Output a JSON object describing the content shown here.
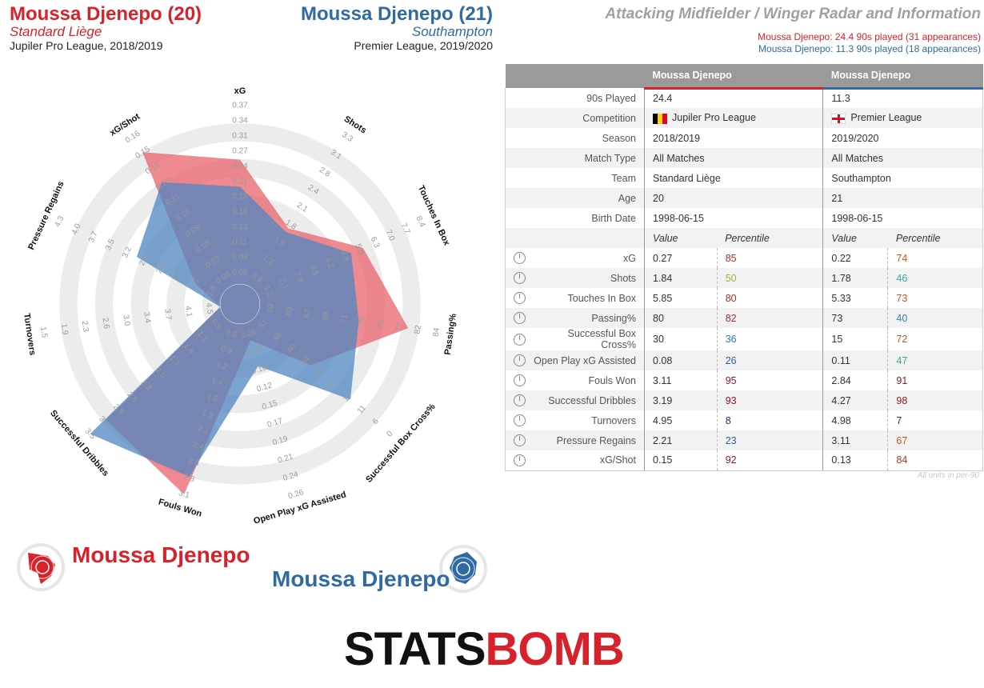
{
  "player1": {
    "name": "Moussa Djenepo (20)",
    "team": "Standard Liège",
    "comp": "Jupiler Pro League, 2018/2019",
    "color": "#d7222b"
  },
  "player2": {
    "name": "Moussa Djenepo (21)",
    "team": "Southampton",
    "comp": "Premier League, 2019/2020",
    "color": "#2f6aa3"
  },
  "radar_title": "Attacking Midfielder / Winger Radar and Information",
  "info1": "Moussa Djenepo: 24.4 90s played (31 appearances)",
  "info2": "Moussa Djenepo: 11.3 90s played (18 appearances)",
  "legend": {
    "p1": "Moussa Djenepo",
    "p2": "Moussa Djenepo"
  },
  "logo": {
    "part1": "STATS",
    "part2": "BOMB"
  },
  "units_note": "All units in per-90",
  "table": {
    "header": [
      "",
      "Moussa Djenepo",
      "Moussa Djenepo"
    ],
    "info_rows": [
      {
        "label": "90s Played",
        "v1": "24.4",
        "v2": "11.3"
      },
      {
        "label": "Competition",
        "v1": "Jupiler Pro League",
        "v2": "Premier League",
        "flag": true
      },
      {
        "label": "Season",
        "v1": "2018/2019",
        "v2": "2019/2020"
      },
      {
        "label": "Match Type",
        "v1": "All Matches",
        "v2": "All Matches"
      },
      {
        "label": "Team",
        "v1": "Standard Liège",
        "v2": "Southampton"
      },
      {
        "label": "Age",
        "v1": "20",
        "v2": "21"
      },
      {
        "label": "Birth Date",
        "v1": "1998-06-15",
        "v2": "1998-06-15"
      }
    ],
    "subheader": {
      "value": "Value",
      "percentile": "Percentile"
    },
    "stat_rows": [
      {
        "label": "xG",
        "v1": "0.27",
        "p1": "85",
        "c1": "#a1322e",
        "v2": "0.22",
        "p2": "74",
        "c2": "#c8541f"
      },
      {
        "label": "Shots",
        "v1": "1.84",
        "p1": "50",
        "c1": "#a8b03c",
        "v2": "1.78",
        "p2": "46",
        "c2": "#3aa6a0"
      },
      {
        "label": "Touches In Box",
        "v1": "5.85",
        "p1": "80",
        "c1": "#a1322e",
        "v2": "5.33",
        "p2": "73",
        "c2": "#c8541f"
      },
      {
        "label": "Passing%",
        "v1": "80",
        "p1": "82",
        "c1": "#a1322e",
        "v2": "73",
        "p2": "40",
        "c2": "#2f8ab0"
      },
      {
        "label": "Successful Box Cross%",
        "v1": "30",
        "p1": "36",
        "c1": "#2f7ab0",
        "v2": "15",
        "p2": "72",
        "c2": "#c8541f"
      },
      {
        "label": "Open Play xG Assisted",
        "v1": "0.08",
        "p1": "26",
        "c1": "#2f5fa0",
        "v2": "0.11",
        "p2": "47",
        "c2": "#3aa680"
      },
      {
        "label": "Fouls Won",
        "v1": "3.11",
        "p1": "95",
        "c1": "#8a1c22",
        "v2": "2.84",
        "p2": "91",
        "c2": "#8a1c22"
      },
      {
        "label": "Successful Dribbles",
        "v1": "3.19",
        "p1": "93",
        "c1": "#8a1c22",
        "v2": "4.27",
        "p2": "98",
        "c2": "#8a1c22"
      },
      {
        "label": "Turnovers",
        "v1": "4.95",
        "p1": "8",
        "c1": "#1f2f70",
        "v2": "4.98",
        "p2": "7",
        "c2": "#1f2f70"
      },
      {
        "label": "Pressure Regains",
        "v1": "2.21",
        "p1": "23",
        "c1": "#2f5fa0",
        "v2": "3.11",
        "p2": "67",
        "c2": "#c8541f"
      },
      {
        "label": "xG/Shot",
        "v1": "0.15",
        "p1": "92",
        "c1": "#8a1c22",
        "v2": "0.13",
        "p2": "84",
        "c2": "#a1322e"
      }
    ]
  },
  "chart_data": {
    "type": "radar",
    "axes": [
      {
        "name": "xG",
        "ticks": [
          "0.06",
          "0.08",
          "0.11",
          "0.13",
          "0.16",
          "0.18",
          "0.21",
          "0.24",
          "0.27",
          "0.31",
          "0.34",
          "0.37"
        ],
        "min": 0.04,
        "max": 0.37
      },
      {
        "name": "Shots",
        "ticks": [
          "0.9",
          "1.2",
          "1.5",
          "1.8",
          "2.1",
          "2.4",
          "2.8",
          "3.1",
          "3.3"
        ],
        "min": 0.9,
        "max": 3.3
      },
      {
        "name": "Touches In Box",
        "ticks": [
          "1.2",
          "2.1",
          "2.8",
          "3.5",
          "4.2",
          "4.9",
          "5.6",
          "6.3",
          "7.0",
          "7.7",
          "8.4"
        ],
        "min": 1.2,
        "max": 8.4
      },
      {
        "name": "Passing%",
        "ticks": [
          "59",
          "63",
          "67",
          "69",
          "71",
          "73",
          "75",
          "77",
          "82",
          "84"
        ],
        "min": 59,
        "max": 84
      },
      {
        "name": "Successful Box Cross%",
        "ticks": [
          "51",
          "46",
          "40",
          "34",
          "29",
          "23",
          "17",
          "11",
          "6",
          "0"
        ],
        "min": 51,
        "max": 0
      },
      {
        "name": "Open Play xG Assisted",
        "ticks": [
          "0.06",
          "0.08",
          "0.10",
          "0.12",
          "0.15",
          "0.17",
          "0.19",
          "0.21",
          "0.24",
          "0.26"
        ],
        "min": 0.06,
        "max": 0.26
      },
      {
        "name": "Fouls Won",
        "ticks": [
          "0.6",
          "0.9",
          "1.2",
          "1.4",
          "1.6",
          "1.9",
          "2.1",
          "2.4",
          "2.6",
          "2.8",
          "3.1"
        ],
        "min": 0.6,
        "max": 3.1
      },
      {
        "name": "Successful Dribbles",
        "ticks": [
          "0.9",
          "1.1",
          "1.4",
          "1.7",
          "2.0",
          "2.3",
          "2.6",
          "2.9",
          "3.1",
          "3.5"
        ],
        "min": 0.9,
        "max": 3.5
      },
      {
        "name": "Turnovers",
        "ticks": [
          "4.5",
          "4.1",
          "3.7",
          "3.4",
          "3.0",
          "2.6",
          "2.3",
          "1.9",
          "1.5"
        ],
        "min": 4.5,
        "max": 1.5
      },
      {
        "name": "Pressure Regains",
        "ticks": [
          "1.8",
          "2.1",
          "2.4",
          "2.6",
          "2.9",
          "3.2",
          "3.5",
          "3.7",
          "4.0",
          "4.3"
        ],
        "min": 1.8,
        "max": 4.3
      },
      {
        "name": "xG/Shot",
        "ticks": [
          "0.06",
          "0.07",
          "0.08",
          "0.09",
          "0.10",
          "0.11",
          "0.13",
          "0.14",
          "0.15",
          "0.16"
        ],
        "min": 0.06,
        "max": 0.16
      }
    ],
    "series": [
      {
        "name": "Moussa Djenepo",
        "color": "#e8636b",
        "values": [
          0.27,
          1.84,
          5.85,
          80,
          30,
          0.08,
          3.11,
          3.19,
          4.95,
          2.21,
          0.15
        ]
      },
      {
        "name": "Moussa Djenepo",
        "color": "#4f85c0",
        "values": [
          0.22,
          1.78,
          5.33,
          73,
          15,
          0.11,
          2.84,
          4.27,
          4.98,
          3.11,
          0.13
        ]
      }
    ]
  }
}
